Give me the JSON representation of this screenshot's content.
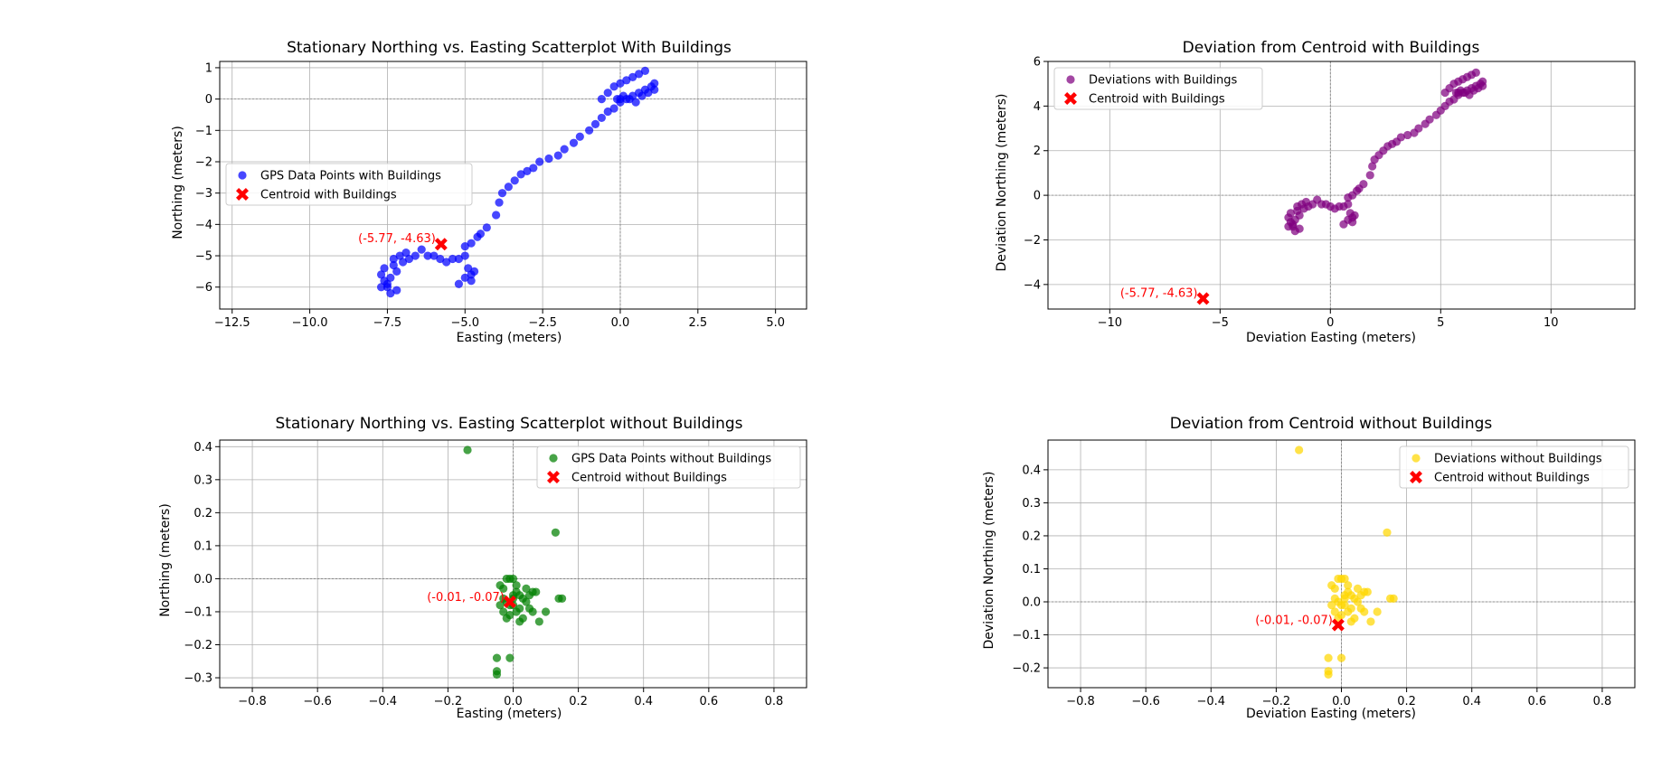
{
  "colors": {
    "blue": "#0000ff",
    "purple": "#800080",
    "green": "#008000",
    "gold": "#ffd700",
    "centroid": "#ff0000",
    "grid": "#b0b0b0"
  },
  "chart_data": [
    {
      "type": "scatter",
      "title": "Stationary Northing vs. Easting Scatterplot With Buildings",
      "xlabel": "Easting (meters)",
      "ylabel": "Northing (meters)",
      "xlim": [
        -12.9,
        6.0
      ],
      "ylim": [
        -6.7,
        1.2
      ],
      "xticks": [
        -12.5,
        -10.0,
        -7.5,
        -5.0,
        -2.5,
        0.0,
        2.5,
        5.0
      ],
      "xtick_labels": [
        "−12.5",
        "−10.0",
        "−7.5",
        "−5.0",
        "−2.5",
        "0.0",
        "2.5",
        "5.0"
      ],
      "yticks": [
        -6,
        -5,
        -4,
        -3,
        -2,
        -1,
        0,
        1
      ],
      "ytick_labels": [
        "−6",
        "−5",
        "−4",
        "−3",
        "−2",
        "−1",
        "0",
        "1"
      ],
      "grid": true,
      "legend_position": "center-left",
      "series": [
        {
          "name": "GPS Data Points with  Buildings",
          "color": "blue",
          "marker": "circle",
          "x": [
            -7.7,
            -7.6,
            -7.5,
            -7.4,
            -7.3,
            -7.2,
            -7.6,
            -7.4,
            -7.2,
            -7.0,
            -7.5,
            -7.3,
            -7.7,
            -7.1,
            -6.9,
            -6.8,
            -6.6,
            -6.4,
            -6.2,
            -6.0,
            -5.8,
            -5.6,
            -5.4,
            -5.2,
            -5.0,
            -4.9,
            -4.8,
            -4.7,
            -4.8,
            -5.0,
            -5.2,
            -5.0,
            -4.8,
            -4.6,
            -4.5,
            -4.3,
            -4.0,
            -3.9,
            -3.8,
            -3.6,
            -3.4,
            -3.2,
            -3.0,
            -2.8,
            -2.6,
            -2.3,
            -2.0,
            -1.8,
            -1.5,
            -1.3,
            -1.0,
            -0.8,
            -0.6,
            -0.4,
            -0.2,
            0.0,
            0.2,
            0.4,
            0.6,
            0.8,
            1.0,
            1.1,
            -0.6,
            -0.4,
            -0.2,
            0.0,
            0.2,
            0.4,
            0.6,
            0.8,
            0.3,
            0.5,
            0.7,
            0.9,
            1.1,
            0.1,
            -0.1,
            0.0
          ],
          "y": [
            -5.6,
            -5.8,
            -6.0,
            -6.2,
            -5.3,
            -5.5,
            -5.4,
            -5.7,
            -6.1,
            -5.2,
            -5.9,
            -5.1,
            -6.0,
            -5.0,
            -4.9,
            -5.1,
            -5.0,
            -4.8,
            -5.0,
            -5.0,
            -5.1,
            -5.2,
            -5.1,
            -5.1,
            -5.0,
            -5.4,
            -5.6,
            -5.5,
            -5.8,
            -5.7,
            -5.9,
            -4.7,
            -4.6,
            -4.4,
            -4.3,
            -4.1,
            -3.7,
            -3.3,
            -3.0,
            -2.8,
            -2.6,
            -2.4,
            -2.3,
            -2.2,
            -2.0,
            -1.9,
            -1.8,
            -1.6,
            -1.4,
            -1.2,
            -1.0,
            -0.8,
            -0.6,
            -0.4,
            -0.3,
            -0.1,
            0.0,
            0.1,
            0.2,
            0.3,
            0.4,
            0.5,
            0.0,
            0.2,
            0.4,
            0.5,
            0.6,
            0.7,
            0.8,
            0.9,
            0.0,
            -0.1,
            0.1,
            0.2,
            0.3,
            0.1,
            0.0,
            0.0
          ]
        },
        {
          "name": "Centroid with Buildings",
          "color": "centroid",
          "marker": "X",
          "x": [
            -5.77
          ],
          "y": [
            -4.63
          ]
        }
      ],
      "annotation": {
        "text": "(-5.77, -4.63)",
        "x": -5.77,
        "y": -4.63
      }
    },
    {
      "type": "scatter",
      "title": "Deviation from Centroid with Buildings",
      "xlabel": "Deviation Easting (meters)",
      "ylabel": "Deviation Northing (meters)",
      "xlim": [
        -12.8,
        13.8
      ],
      "ylim": [
        -5.1,
        6.0
      ],
      "xticks": [
        -10,
        -5,
        0,
        5,
        10
      ],
      "xtick_labels": [
        "−10",
        "−5",
        "0",
        "5",
        "10"
      ],
      "yticks": [
        -4,
        -2,
        0,
        2,
        4,
        6
      ],
      "ytick_labels": [
        "−4",
        "−2",
        "0",
        "2",
        "4",
        "6"
      ],
      "grid": true,
      "legend_position": "upper-left",
      "series": [
        {
          "name": "Deviations with Buildings",
          "color": "purple",
          "marker": "circle",
          "x": [
            -1.9,
            -1.8,
            -1.7,
            -1.6,
            -1.5,
            -1.4,
            -1.8,
            -1.6,
            -1.4,
            -1.2,
            -1.7,
            -1.5,
            -1.9,
            -1.3,
            -1.1,
            -1.0,
            -0.8,
            -0.6,
            -0.4,
            -0.2,
            0.0,
            0.2,
            0.4,
            0.6,
            0.8,
            0.9,
            1.0,
            1.1,
            1.0,
            0.8,
            0.6,
            0.8,
            1.0,
            1.2,
            1.3,
            1.5,
            1.8,
            1.9,
            2.0,
            2.2,
            2.4,
            2.6,
            2.8,
            3.0,
            3.2,
            3.5,
            3.8,
            4.0,
            4.3,
            4.5,
            4.8,
            5.0,
            5.2,
            5.4,
            5.6,
            5.8,
            6.0,
            6.2,
            6.4,
            6.6,
            6.8,
            6.9,
            5.2,
            5.4,
            5.6,
            5.8,
            6.0,
            6.2,
            6.4,
            6.6,
            6.1,
            6.3,
            6.5,
            6.7,
            6.9,
            5.9,
            5.7,
            5.8
          ],
          "y": [
            -1.0,
            -1.2,
            -1.4,
            -1.6,
            -0.7,
            -0.9,
            -0.8,
            -1.1,
            -1.5,
            -0.6,
            -1.3,
            -0.5,
            -1.4,
            -0.4,
            -0.3,
            -0.5,
            -0.4,
            -0.2,
            -0.4,
            -0.4,
            -0.5,
            -0.6,
            -0.5,
            -0.5,
            -0.4,
            -0.8,
            -1.0,
            -0.9,
            -1.2,
            -1.1,
            -1.3,
            -0.1,
            0.0,
            0.2,
            0.3,
            0.5,
            0.9,
            1.3,
            1.6,
            1.8,
            2.0,
            2.2,
            2.3,
            2.4,
            2.6,
            2.7,
            2.8,
            3.0,
            3.2,
            3.4,
            3.6,
            3.8,
            4.0,
            4.2,
            4.3,
            4.5,
            4.6,
            4.7,
            4.8,
            4.9,
            5.0,
            5.1,
            4.6,
            4.8,
            5.0,
            5.1,
            5.2,
            5.3,
            5.4,
            5.5,
            4.6,
            4.5,
            4.7,
            4.8,
            4.9,
            4.7,
            4.6,
            4.6
          ]
        },
        {
          "name": "Centroid with Buildings",
          "color": "centroid",
          "marker": "X",
          "x": [
            -5.77
          ],
          "y": [
            -4.63
          ]
        }
      ],
      "annotation": {
        "text": "(-5.77, -4.63)",
        "x": -5.77,
        "y": -4.63
      }
    },
    {
      "type": "scatter",
      "title": "Stationary Northing vs. Easting Scatterplot without Buildings",
      "xlabel": "Easting (meters)",
      "ylabel": "Northing (meters)",
      "xlim": [
        -0.9,
        0.9
      ],
      "ylim": [
        -0.33,
        0.42
      ],
      "xticks": [
        -0.8,
        -0.6,
        -0.4,
        -0.2,
        0.0,
        0.2,
        0.4,
        0.6,
        0.8
      ],
      "xtick_labels": [
        "−0.8",
        "−0.6",
        "−0.4",
        "−0.2",
        "0.0",
        "0.2",
        "0.4",
        "0.6",
        "0.8"
      ],
      "yticks": [
        -0.3,
        -0.2,
        -0.1,
        0.0,
        0.1,
        0.2,
        0.3,
        0.4
      ],
      "ytick_labels": [
        "−0.3",
        "−0.2",
        "−0.1",
        "0.0",
        "0.1",
        "0.2",
        "0.3",
        "0.4"
      ],
      "grid": true,
      "legend_position": "upper-right",
      "series": [
        {
          "name": "GPS Data Points without Buildings",
          "color": "green",
          "marker": "circle",
          "x": [
            -0.14,
            0.13,
            0.14,
            0.15,
            -0.05,
            -0.05,
            -0.05,
            -0.01,
            -0.04,
            -0.03,
            -0.02,
            -0.01,
            0.0,
            0.01,
            0.02,
            0.03,
            0.04,
            0.05,
            0.06,
            -0.02,
            0.0,
            0.02,
            0.04,
            -0.03,
            -0.01,
            0.01,
            0.03,
            0.07,
            0.08,
            0.1,
            0.02,
            -0.02,
            -0.01,
            0.0,
            0.01,
            0.05,
            0.06,
            -0.04,
            -0.03,
            0.0
          ],
          "y": [
            0.39,
            0.14,
            -0.06,
            -0.06,
            -0.24,
            -0.28,
            -0.29,
            -0.24,
            -0.02,
            -0.03,
            0.0,
            0.0,
            0.0,
            -0.02,
            -0.05,
            -0.06,
            -0.03,
            -0.05,
            -0.04,
            -0.07,
            -0.08,
            -0.09,
            -0.07,
            -0.1,
            -0.11,
            -0.1,
            -0.12,
            -0.04,
            -0.13,
            -0.1,
            -0.13,
            -0.12,
            -0.08,
            -0.06,
            -0.04,
            -0.09,
            -0.1,
            -0.08,
            -0.06,
            -0.05
          ]
        },
        {
          "name": "Centroid without Buildings",
          "color": "centroid",
          "marker": "X",
          "x": [
            -0.01
          ],
          "y": [
            -0.07
          ]
        }
      ],
      "annotation": {
        "text": "(-0.01, -0.07)",
        "x": -0.01,
        "y": -0.07
      }
    },
    {
      "type": "scatter",
      "title": "Deviation from Centroid without Buildings",
      "xlabel": "Deviation Easting (meters)",
      "ylabel": "Deviation Northing (meters)",
      "xlim": [
        -0.9,
        0.9
      ],
      "ylim": [
        -0.26,
        0.49
      ],
      "xticks": [
        -0.8,
        -0.6,
        -0.4,
        -0.2,
        0.0,
        0.2,
        0.4,
        0.6,
        0.8
      ],
      "xtick_labels": [
        "−0.8",
        "−0.6",
        "−0.4",
        "−0.2",
        "0.0",
        "0.2",
        "0.4",
        "0.6",
        "0.8"
      ],
      "yticks": [
        -0.2,
        -0.1,
        0.0,
        0.1,
        0.2,
        0.3,
        0.4
      ],
      "ytick_labels": [
        "−0.2",
        "−0.1",
        "0.0",
        "0.1",
        "0.2",
        "0.3",
        "0.4"
      ],
      "grid": true,
      "legend_position": "upper-right",
      "series": [
        {
          "name": "Deviations without Buildings",
          "color": "gold",
          "marker": "circle",
          "x": [
            -0.13,
            0.14,
            0.15,
            0.16,
            -0.04,
            -0.04,
            -0.04,
            0.0,
            -0.03,
            -0.02,
            -0.01,
            0.0,
            0.01,
            0.02,
            0.03,
            0.04,
            0.05,
            0.06,
            0.07,
            -0.01,
            0.01,
            0.03,
            0.05,
            -0.02,
            0.0,
            0.02,
            0.04,
            0.08,
            0.09,
            0.11,
            0.03,
            -0.01,
            0.0,
            0.01,
            0.02,
            0.06,
            0.07,
            -0.03,
            -0.02,
            0.01
          ],
          "y": [
            0.46,
            0.21,
            0.01,
            0.01,
            -0.17,
            -0.21,
            -0.22,
            -0.17,
            0.05,
            0.04,
            0.07,
            0.07,
            0.07,
            0.05,
            0.02,
            0.01,
            0.04,
            0.02,
            0.03,
            0.0,
            -0.01,
            -0.02,
            0.0,
            -0.03,
            -0.04,
            -0.03,
            -0.05,
            0.03,
            -0.06,
            -0.03,
            -0.06,
            -0.05,
            -0.01,
            0.01,
            0.03,
            -0.02,
            -0.03,
            -0.01,
            0.01,
            0.02
          ]
        },
        {
          "name": "Centroid without Buildings",
          "color": "centroid",
          "marker": "X",
          "x": [
            -0.01
          ],
          "y": [
            -0.07
          ]
        }
      ],
      "annotation": {
        "text": "(-0.01, -0.07)",
        "x": -0.01,
        "y": -0.07
      }
    }
  ]
}
